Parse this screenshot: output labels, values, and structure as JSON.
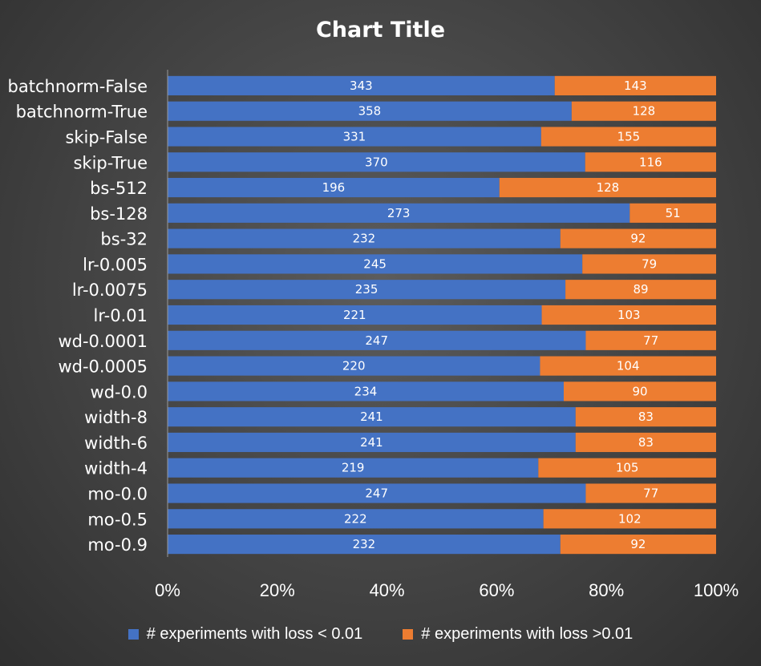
{
  "colors": {
    "series1": "#4472c4",
    "series2": "#ed7d31",
    "text": "#ffffff",
    "axis": "#9a9a9a"
  },
  "chart_data": {
    "type": "bar",
    "orientation": "horizontal",
    "stacked": "percent",
    "title": "Chart Title",
    "categories": [
      "batchnorm-False",
      "batchnorm-True",
      "skip-False",
      "skip-True",
      "bs-512",
      "bs-128",
      "bs-32",
      "lr-0.005",
      "lr-0.0075",
      "lr-0.01",
      "wd-0.0001",
      "wd-0.0005",
      "wd-0.0",
      "width-8",
      "width-6",
      "width-4",
      "mo-0.0",
      "mo-0.5",
      "mo-0.9"
    ],
    "series": [
      {
        "name": "# experiments with loss < 0.01",
        "values": [
          343,
          358,
          331,
          370,
          196,
          273,
          232,
          245,
          235,
          221,
          247,
          220,
          234,
          241,
          241,
          219,
          247,
          222,
          232
        ]
      },
      {
        "name": "# experiments with loss >0.01",
        "values": [
          143,
          128,
          155,
          116,
          128,
          51,
          92,
          79,
          89,
          103,
          77,
          104,
          90,
          83,
          83,
          105,
          77,
          102,
          92
        ]
      }
    ],
    "xticks": [
      "0%",
      "20%",
      "40%",
      "60%",
      "80%",
      "100%"
    ],
    "xlim": [
      0,
      100
    ],
    "grid": false,
    "legend": "bottom"
  }
}
